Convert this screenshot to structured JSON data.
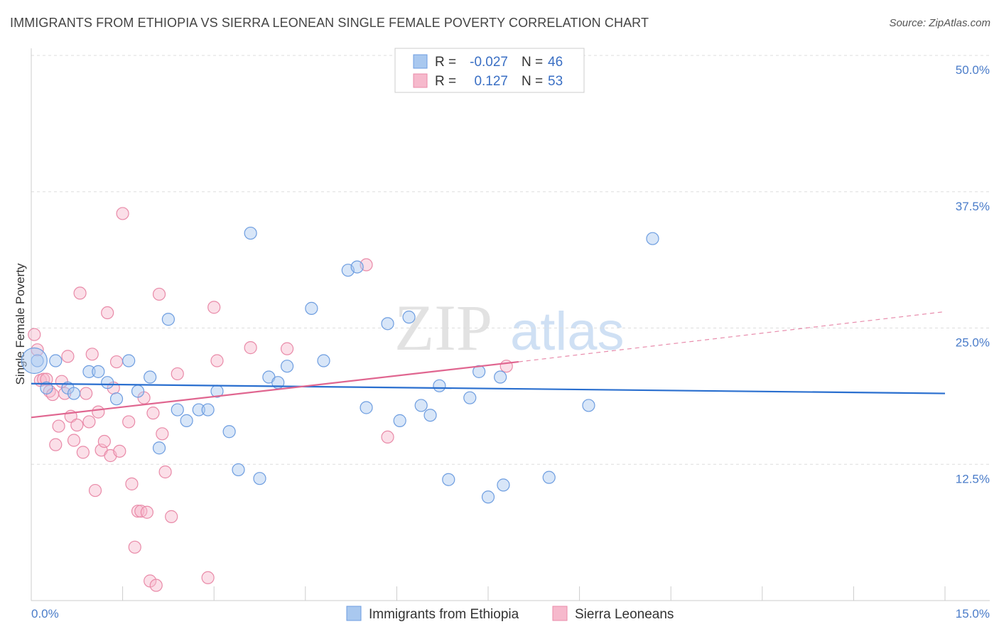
{
  "header": {
    "title": "IMMIGRANTS FROM ETHIOPIA VS SIERRA LEONEAN SINGLE FEMALE POVERTY CORRELATION CHART",
    "source": "Source: ZipAtlas.com"
  },
  "watermark": {
    "part1": "ZIP",
    "part2": "atlas"
  },
  "legend": {
    "row1": {
      "r_label": "R =",
      "r_value": "-0.027",
      "n_label": "N =",
      "n_value": "46"
    },
    "row2": {
      "r_label": "R =",
      "r_value": "0.127",
      "n_label": "N =",
      "n_value": "53"
    }
  },
  "bottom_legend": {
    "series1": "Immigrants from Ethiopia",
    "series2": "Sierra Leoneans"
  },
  "colors": {
    "blue_fill": "#a9c8ef",
    "blue_stroke": "#6d9de0",
    "blue_line": "#2a6fcf",
    "pink_fill": "#f6b9cc",
    "pink_stroke": "#e98aa8",
    "pink_line": "#e06690",
    "grid": "#dddddd",
    "axis_label": "#4a7cc9"
  },
  "chart_data": {
    "type": "scatter",
    "title": "IMMIGRANTS FROM ETHIOPIA VS SIERRA LEONEAN SINGLE FEMALE POVERTY CORRELATION CHART",
    "xlabel": "",
    "ylabel": "Single Female Poverty",
    "xlim": [
      0,
      15
    ],
    "ylim": [
      0,
      50
    ],
    "x_tick_labels": [
      "0.0%",
      "15.0%"
    ],
    "y_tick_values": [
      12.5,
      25.0,
      37.5,
      50.0
    ],
    "y_tick_labels": [
      "12.5%",
      "25.0%",
      "37.5%",
      "50.0%"
    ],
    "series": [
      {
        "name": "Immigrants from Ethiopia",
        "r": -0.027,
        "n": 46,
        "trend": {
          "x0": 0.0,
          "y0": 19.9,
          "x1": 15.0,
          "y1": 19.0
        },
        "points": [
          [
            0.1,
            22.0
          ],
          [
            0.4,
            22.0
          ],
          [
            0.25,
            19.5
          ],
          [
            0.6,
            19.5
          ],
          [
            0.7,
            19.0
          ],
          [
            0.95,
            21.0
          ],
          [
            1.1,
            21.0
          ],
          [
            1.25,
            20.0
          ],
          [
            1.4,
            18.5
          ],
          [
            1.6,
            22.0
          ],
          [
            1.75,
            19.2
          ],
          [
            1.95,
            20.5
          ],
          [
            2.1,
            14.0
          ],
          [
            2.25,
            25.8
          ],
          [
            2.4,
            17.5
          ],
          [
            2.55,
            16.5
          ],
          [
            2.75,
            17.5
          ],
          [
            2.9,
            17.5
          ],
          [
            3.05,
            19.2
          ],
          [
            3.25,
            15.5
          ],
          [
            3.4,
            12.0
          ],
          [
            3.6,
            33.7
          ],
          [
            3.75,
            11.2
          ],
          [
            3.9,
            20.5
          ],
          [
            4.05,
            20.0
          ],
          [
            4.2,
            21.5
          ],
          [
            4.6,
            26.8
          ],
          [
            4.8,
            22.0
          ],
          [
            5.2,
            30.3
          ],
          [
            5.35,
            30.6
          ],
          [
            5.5,
            17.7
          ],
          [
            5.85,
            25.4
          ],
          [
            6.05,
            16.5
          ],
          [
            6.2,
            26.0
          ],
          [
            6.4,
            17.9
          ],
          [
            6.55,
            17.0
          ],
          [
            6.7,
            19.7
          ],
          [
            6.85,
            11.1
          ],
          [
            7.2,
            18.6
          ],
          [
            7.35,
            21.0
          ],
          [
            7.5,
            9.5
          ],
          [
            7.7,
            20.5
          ],
          [
            7.75,
            10.6
          ],
          [
            8.5,
            11.3
          ],
          [
            9.15,
            17.9
          ],
          [
            10.2,
            33.2
          ]
        ]
      },
      {
        "name": "Sierra Leoneans",
        "r": 0.127,
        "n": 53,
        "trend": {
          "x0": 0.0,
          "y0": 16.8,
          "x1": 8.0,
          "y1": 21.9
        },
        "trend_dashed": {
          "x0": 8.0,
          "y0": 21.9,
          "x1": 15.0,
          "y1": 26.5
        },
        "points": [
          [
            0.05,
            24.4
          ],
          [
            0.1,
            23.0
          ],
          [
            0.15,
            20.2
          ],
          [
            0.2,
            20.3
          ],
          [
            0.25,
            20.3
          ],
          [
            0.3,
            19.2
          ],
          [
            0.4,
            14.3
          ],
          [
            0.45,
            16.0
          ],
          [
            0.55,
            19.0
          ],
          [
            0.6,
            22.4
          ],
          [
            0.65,
            16.9
          ],
          [
            0.7,
            14.7
          ],
          [
            0.75,
            16.1
          ],
          [
            0.8,
            28.2
          ],
          [
            0.85,
            13.6
          ],
          [
            0.9,
            19.0
          ],
          [
            0.95,
            16.4
          ],
          [
            1.0,
            22.6
          ],
          [
            1.05,
            10.1
          ],
          [
            1.1,
            17.3
          ],
          [
            1.15,
            13.8
          ],
          [
            1.2,
            14.6
          ],
          [
            1.25,
            26.4
          ],
          [
            1.3,
            13.3
          ],
          [
            1.35,
            19.5
          ],
          [
            1.45,
            13.7
          ],
          [
            1.5,
            35.5
          ],
          [
            1.6,
            16.4
          ],
          [
            1.65,
            10.7
          ],
          [
            1.7,
            4.9
          ],
          [
            1.75,
            8.2
          ],
          [
            1.8,
            8.2
          ],
          [
            1.85,
            18.6
          ],
          [
            1.9,
            8.1
          ],
          [
            1.95,
            1.8
          ],
          [
            2.05,
            1.4
          ],
          [
            2.1,
            28.1
          ],
          [
            2.15,
            15.3
          ],
          [
            2.2,
            11.8
          ],
          [
            2.3,
            7.7
          ],
          [
            2.4,
            20.8
          ],
          [
            2.9,
            2.1
          ],
          [
            3.0,
            26.9
          ],
          [
            3.05,
            22.0
          ],
          [
            3.6,
            23.2
          ],
          [
            4.2,
            23.1
          ],
          [
            5.5,
            30.8
          ],
          [
            5.85,
            15.0
          ],
          [
            7.8,
            21.5
          ],
          [
            0.35,
            18.9
          ],
          [
            0.5,
            20.1
          ],
          [
            1.4,
            21.9
          ],
          [
            2.0,
            17.2
          ]
        ]
      }
    ]
  }
}
